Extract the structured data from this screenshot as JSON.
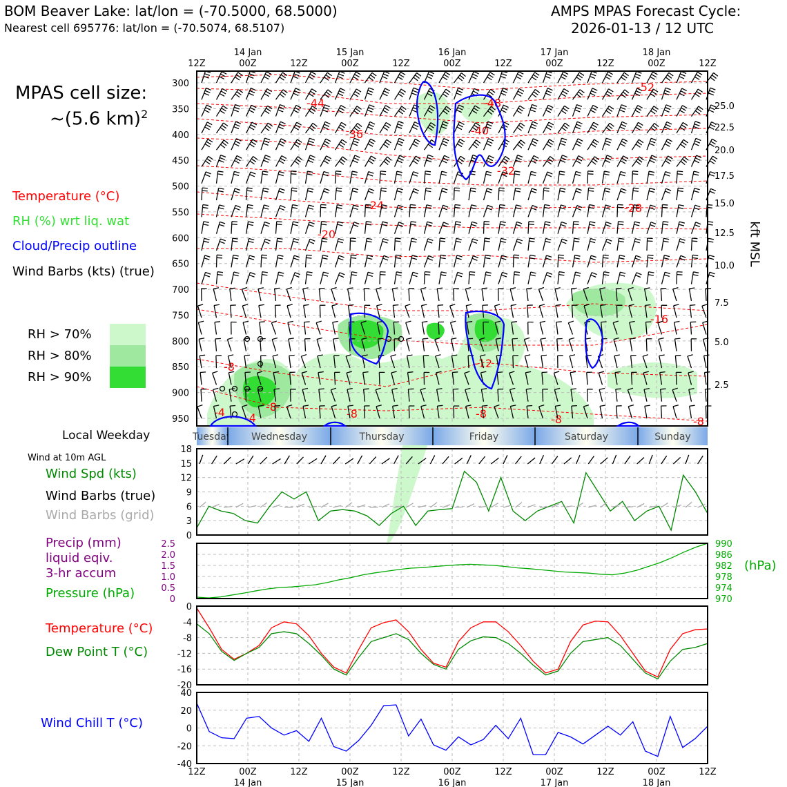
{
  "header": {
    "title_left": "BOM Beaver Lake: lat/lon = (-70.5000, 68.5000)",
    "subtitle_left": "Nearest cell 695776: lat/lon = (-70.5074, 68.5107)",
    "title_right_1": "AMPS MPAS Forecast Cycle:",
    "title_right_2": "2026-01-13 / 12 UTC"
  },
  "side": {
    "cell_size_1": "MPAS cell size:",
    "cell_size_2": "~(5.6 km)",
    "cell_size_sup": "2",
    "legend_temperature": "Temperature (°C)",
    "legend_rh": "RH (%) wrt liq. wat",
    "legend_cloud": "Cloud/Precip outline",
    "legend_barbs": "Wind Barbs (kts) (true)",
    "rh70": "RH > 70%",
    "rh80": "RH > 80%",
    "rh90": "RH > 90%",
    "local_weekday": "Local Weekday",
    "wind10m": "Wind at 10m AGL",
    "wind_spd": "Wind Spd (kts)",
    "wind_barbs_true": "Wind Barbs (true)",
    "wind_barbs_grid": "Wind Barbs (grid)",
    "precip_1": "Precip (mm)",
    "precip_2": "liquid eqiv.",
    "precip_3": "3-hr accum",
    "pressure": "Pressure (hPa)",
    "hpa_unit": "(hPa)",
    "temp2": "Temperature (°C)",
    "dew": "Dew Point T (°C)",
    "windchill": "Wind Chill T (°C)",
    "kft": "kft MSL"
  },
  "colors": {
    "rh70": "#ccf8cc",
    "rh80": "#9fe89f",
    "rh90": "#33dd33",
    "temp": "#ff0000",
    "dew": "#008800",
    "pressure": "#00aa00",
    "precip": "#800080",
    "cloud": "#0000ff",
    "chill": "#0000ff",
    "grid_barb": "#aaaaaa"
  },
  "chart_data": [
    {
      "type": "heatmap",
      "x": [
        "12Z",
        "00Z",
        "12Z",
        "00Z",
        "12Z",
        "00Z",
        "12Z",
        "00Z",
        "12Z",
        "00Z",
        "12Z"
      ],
      "x_dates": [
        "",
        "14 Jan",
        "",
        "15 Jan",
        "",
        "16 Jan",
        "",
        "17 Jan",
        "",
        "18 Jan",
        ""
      ],
      "y_pressure_ticks": [
        300,
        350,
        400,
        450,
        500,
        550,
        600,
        650,
        700,
        750,
        800,
        850,
        900,
        950
      ],
      "y_kft_ticks": [
        "25.0",
        "22.5",
        "20.0",
        "17.5",
        "15.0",
        "12.5",
        "10.0",
        "7.5",
        "5.0",
        "2.5"
      ],
      "temp_contour_labels": [
        "-52",
        "-48",
        "-44",
        "-40",
        "-36",
        "-32",
        "-28",
        "-24",
        "-20",
        "-16",
        "-12",
        "-8",
        "-8",
        "-8",
        "-8",
        "-8",
        "-8",
        "-4",
        "-4"
      ],
      "weekdays": [
        "Tuesday",
        "Wednesday",
        "Thursday",
        "Friday",
        "Saturday",
        "Sunday"
      ]
    },
    {
      "type": "line",
      "ylim": [
        0,
        18
      ],
      "yticks": [
        0,
        3,
        6,
        9,
        12,
        15,
        18
      ],
      "series": [
        {
          "values": [
            1.5,
            6.0,
            5.0,
            4.5,
            3.0,
            2.5,
            6.0,
            9.0,
            7.5,
            9.0,
            3.0,
            5.0,
            5.3,
            5.0,
            4.0,
            2.0,
            4.5,
            6.0,
            2.0,
            5.0,
            5.3,
            5.5,
            13.3,
            11.0,
            5.0,
            12.0,
            5.0,
            3.0,
            5.0,
            6.0,
            7.0,
            2.5,
            13.0,
            9.0,
            5.0,
            7.0,
            3.0,
            5.0,
            6.0,
            1.0,
            12.5,
            9.0,
            4.5
          ]
        }
      ]
    },
    {
      "type": "line",
      "ylim_precip": [
        0,
        2.5
      ],
      "yticks_precip": [
        "2.5",
        "2.0",
        "1.5",
        "1.0",
        "0.5",
        "0"
      ],
      "ylim": [
        970,
        990
      ],
      "yticks": [
        990,
        986,
        982,
        978,
        974,
        970
      ],
      "series": [
        {
          "values": [
            970.5,
            970.2,
            970.6,
            971.3,
            972.0,
            972.8,
            973.5,
            974.0,
            974.2,
            974.6,
            975.0,
            975.8,
            976.8,
            977.6,
            978.6,
            979.3,
            979.9,
            980.5,
            981.0,
            981.2,
            981.6,
            981.9,
            982.2,
            982.4,
            982.2,
            982.0,
            981.6,
            981.1,
            980.8,
            980.4,
            980.0,
            979.6,
            979.4,
            979.2,
            978.8,
            978.6,
            979.2,
            980.2,
            981.6,
            983.0,
            984.8,
            986.8,
            988.6,
            990.0
          ]
        }
      ]
    },
    {
      "type": "line",
      "ylim": [
        -20,
        0
      ],
      "yticks": [
        0,
        -4,
        -8,
        -12,
        -16,
        -20
      ],
      "series": [
        {
          "values": [
            -0.5,
            -5.5,
            -11.0,
            -13.5,
            -12.0,
            -10.0,
            -5.5,
            -4.0,
            -4.5,
            -7.5,
            -12.0,
            -15.5,
            -17.0,
            -11.0,
            -5.5,
            -4.2,
            -3.5,
            -6.5,
            -11.0,
            -14.5,
            -15.5,
            -9.0,
            -5.5,
            -4.0,
            -4.0,
            -6.5,
            -10.0,
            -14.0,
            -17.0,
            -16.0,
            -9.0,
            -4.8,
            -3.8,
            -4.0,
            -7.5,
            -12.0,
            -16.5,
            -18.0,
            -11.0,
            -7.0,
            -6.0,
            -5.8
          ]
        },
        {
          "values": [
            -4.5,
            -7.0,
            -11.5,
            -13.8,
            -12.0,
            -10.5,
            -7.0,
            -6.5,
            -7.0,
            -9.5,
            -12.5,
            -16.0,
            -17.5,
            -13.0,
            -9.0,
            -8.0,
            -7.0,
            -8.5,
            -12.0,
            -14.8,
            -16.0,
            -11.0,
            -8.8,
            -7.8,
            -8.0,
            -9.5,
            -12.0,
            -15.0,
            -17.5,
            -16.5,
            -12.0,
            -9.0,
            -8.5,
            -8.0,
            -10.0,
            -13.5,
            -17.0,
            -18.5,
            -14.0,
            -11.0,
            -10.5,
            -9.5
          ]
        }
      ]
    },
    {
      "type": "line",
      "ylim": [
        -40,
        40
      ],
      "yticks": [
        40,
        20,
        0,
        -20,
        -40
      ],
      "series": [
        {
          "values": [
            28,
            -4,
            -11,
            -12,
            11,
            13,
            0,
            -8,
            -3,
            -15,
            11,
            -21,
            -26,
            -14,
            3,
            25,
            26,
            -9,
            10,
            -19,
            -25,
            -10,
            -19,
            -13,
            3,
            -12,
            11,
            -30,
            -30,
            -5,
            -10,
            -18,
            -8,
            2,
            -8,
            7,
            -26,
            -32,
            13,
            -22,
            -12,
            2
          ]
        }
      ]
    }
  ]
}
